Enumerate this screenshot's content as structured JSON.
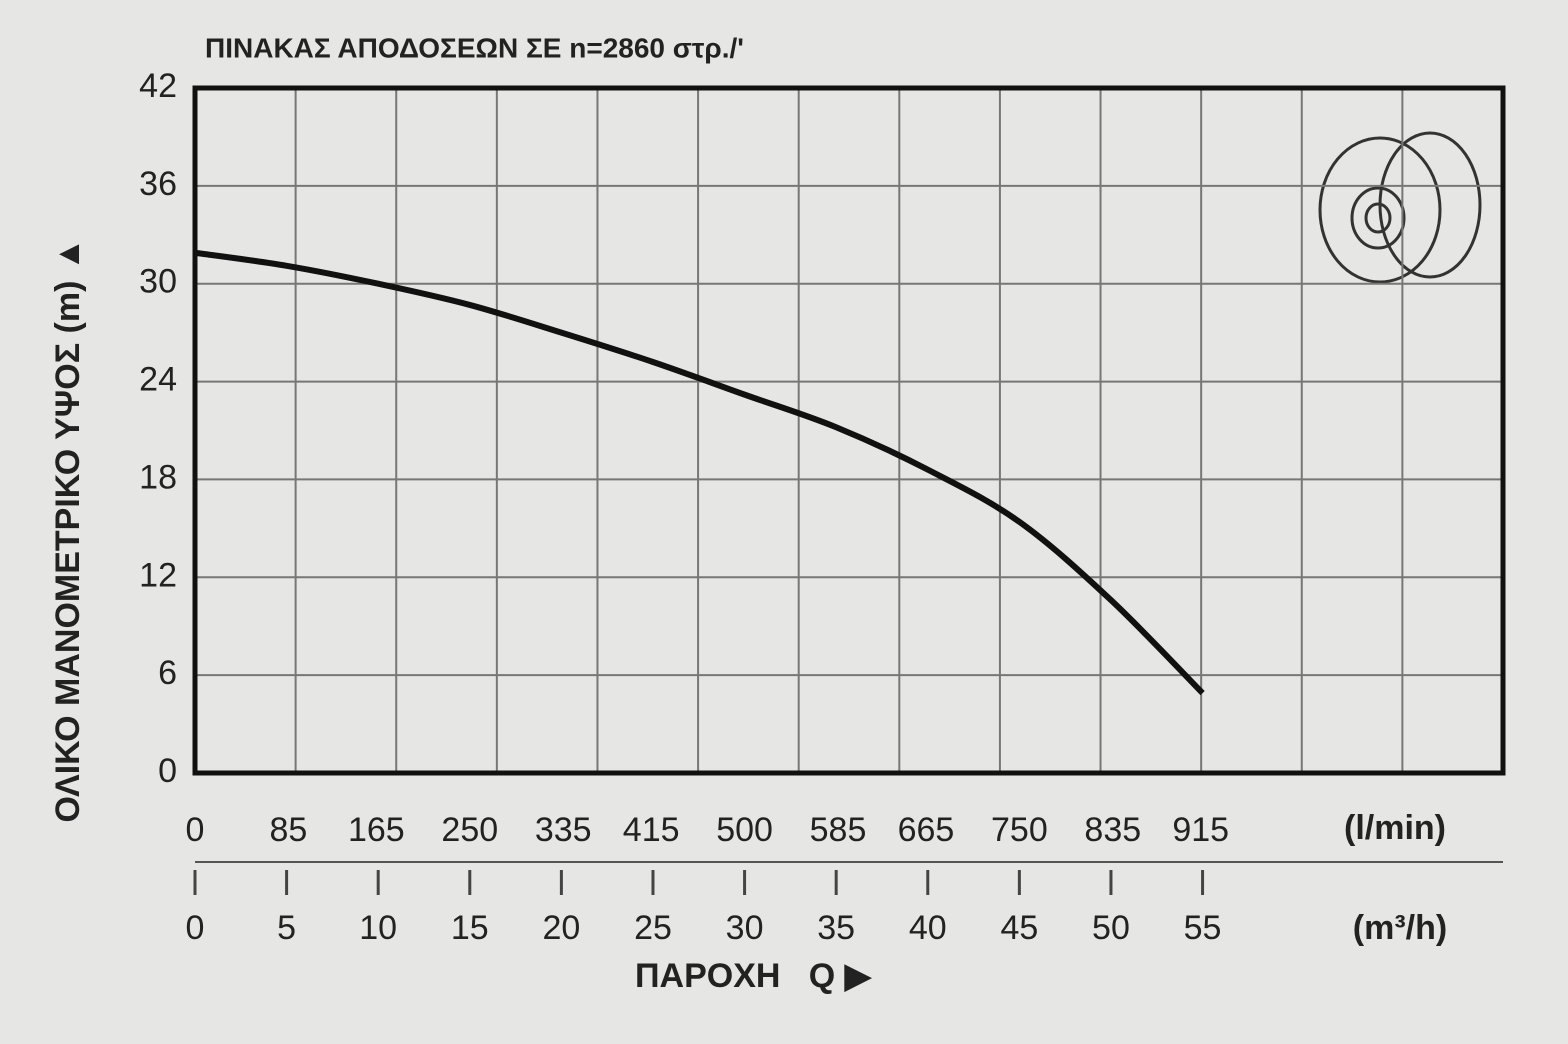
{
  "chart_data": {
    "type": "line",
    "title": "ΠΙΝΑΚΑΣ ΑΠΟΔΟΣΕΩΝ ΣΕ n=2860 στρ./'",
    "y_label": "ΟΛΙΚΟ ΜΑΝΟΜΕΤΡΙΚΟ ΥΨΟΣ (m) ▲",
    "x_label": "ΠΑΡΟΧΗ   Q ▶",
    "x_unit": "(m³/h)",
    "x2_unit": "(l/min)",
    "x": [
      0,
      5,
      10,
      15,
      20,
      25,
      30,
      35,
      40,
      45,
      50,
      55
    ],
    "values": [
      31.9,
      31.1,
      30.0,
      28.7,
      27.0,
      25.2,
      23.2,
      21.2,
      18.6,
      15.4,
      10.6,
      4.9
    ],
    "color": "#111111",
    "xlim": [
      0,
      71.4
    ],
    "xticks": [
      0,
      5,
      10,
      15,
      20,
      25,
      30,
      35,
      40,
      45,
      50,
      55
    ],
    "x2lim": [
      0,
      1190
    ],
    "x2ticks": [
      0,
      85,
      165,
      250,
      335,
      415,
      500,
      585,
      665,
      750,
      835,
      915
    ],
    "ylim": [
      0,
      42
    ],
    "yticks": [
      0,
      6,
      12,
      18,
      24,
      30,
      36,
      42
    ],
    "grid": true
  }
}
